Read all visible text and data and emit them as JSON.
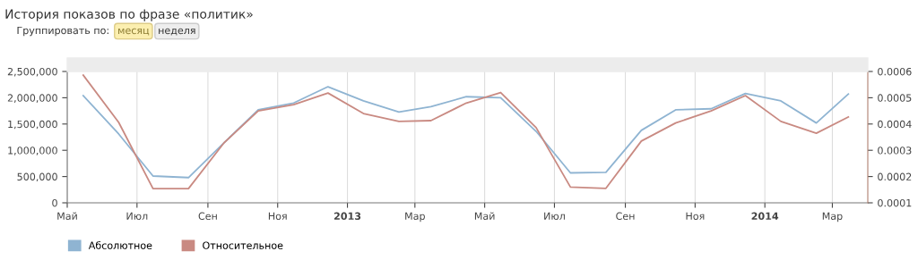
{
  "chart_data": {
    "type": "line",
    "title": "История показов по фразе «политик»",
    "annotations": [
      "Группировать по:",
      "месяц",
      "неделя"
    ],
    "x": [
      "2012-05-15",
      "2012-06-15",
      "2012-07-15",
      "2012-08-15",
      "2012-09-15",
      "2012-10-15",
      "2012-11-15",
      "2012-12-15",
      "2013-01-15",
      "2013-02-15",
      "2013-03-15",
      "2013-04-15",
      "2013-05-15",
      "2013-06-15",
      "2013-07-15",
      "2013-08-15",
      "2013-09-15",
      "2013-10-15",
      "2013-11-15",
      "2013-12-15",
      "2014-01-15",
      "2014-02-15",
      "2014-03-15"
    ],
    "series": [
      {
        "name": "Абсолютное",
        "color": "#8fb4d2",
        "values": [
          2040000,
          1310000,
          510000,
          480000,
          1140000,
          1770000,
          1900000,
          2210000,
          1940000,
          1730000,
          1830000,
          2020000,
          2000000,
          1360000,
          570000,
          580000,
          1380000,
          1770000,
          1790000,
          2080000,
          1940000,
          1520000,
          2070000
        ]
      },
      {
        "name": "Относительное",
        "color": "#c98a82",
        "axis": "y2",
        "values": [
          0.000586,
          0.000406,
          0.000154,
          0.000154,
          0.000328,
          0.00045,
          0.000474,
          0.000518,
          0.00044,
          0.00041,
          0.000413,
          0.00048,
          0.00052,
          0.000386,
          0.00016,
          0.000155,
          0.000335,
          0.000404,
          0.00045,
          0.000508,
          0.00041,
          0.000365,
          0.000427
        ]
      }
    ],
    "xlim": [
      "2012-05-01",
      "2014-04-01"
    ],
    "xticks": [
      {
        "value": "2012-05-01",
        "label": "Май"
      },
      {
        "value": "2012-07-01",
        "label": "Июл"
      },
      {
        "value": "2012-09-01",
        "label": "Сен"
      },
      {
        "value": "2012-11-01",
        "label": "Ноя"
      },
      {
        "value": "2013-01-01",
        "label": "2013"
      },
      {
        "value": "2013-03-01",
        "label": "Мар"
      },
      {
        "value": "2013-05-01",
        "label": "Май"
      },
      {
        "value": "2013-07-01",
        "label": "Июл"
      },
      {
        "value": "2013-09-01",
        "label": "Сен"
      },
      {
        "value": "2013-11-01",
        "label": "Ноя"
      },
      {
        "value": "2014-01-01",
        "label": "2014"
      },
      {
        "value": "2014-03-01",
        "label": "Мар"
      }
    ],
    "ylim": [
      0,
      2500000
    ],
    "yticks": [
      {
        "value": 0,
        "label": "0"
      },
      {
        "value": 500000,
        "label": "500,000"
      },
      {
        "value": 1000000,
        "label": "1,000,000"
      },
      {
        "value": 1500000,
        "label": "1,500,000"
      },
      {
        "value": 2000000,
        "label": "2,000,000"
      },
      {
        "value": 2500000,
        "label": "2,500,000"
      }
    ],
    "y2lim": [
      0.0001,
      0.0006
    ],
    "y2ticks": [
      0.0001,
      0.0002,
      0.0003,
      0.0004,
      0.0005,
      0.0006
    ],
    "grid": "x",
    "legend": "bottom left",
    "marker": "none",
    "line_style": "solid"
  }
}
